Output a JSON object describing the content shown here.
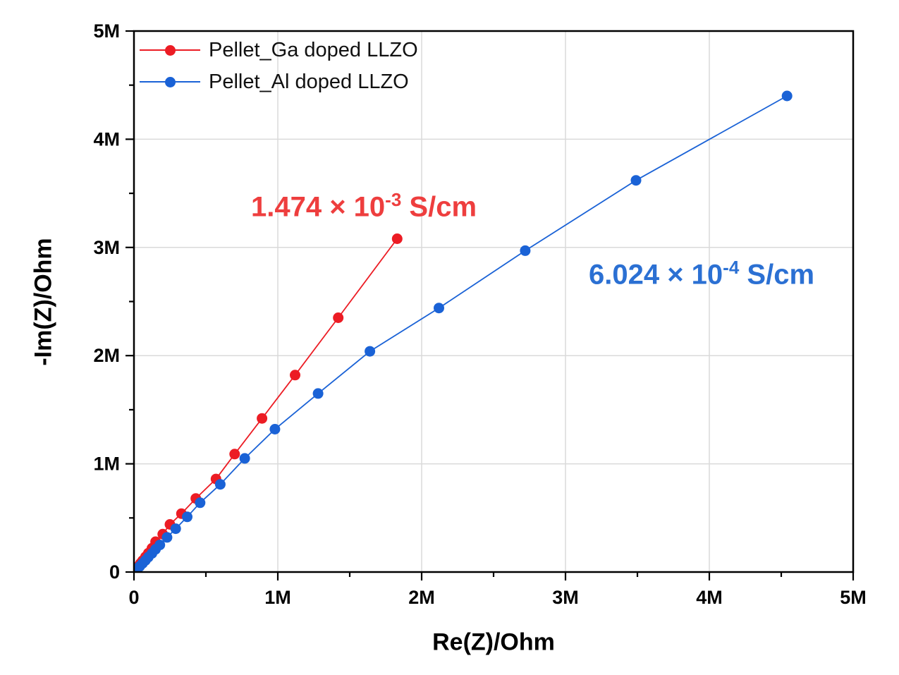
{
  "chart_data": {
    "type": "scatter",
    "subtype": "nyquist-impedance-plot",
    "title": "",
    "xlabel": "Re(Z)/Ohm",
    "ylabel": "-Im(Z)/Ohm",
    "x_axis": {
      "title": "Re(Z)/Ohm",
      "range_MOhm": [
        0,
        5
      ],
      "tick_values_MOhm": [
        0,
        1,
        2,
        3,
        4,
        5
      ],
      "tick_labels": [
        "0",
        "1M",
        "2M",
        "3M",
        "4M",
        "5M"
      ],
      "minor_tick_step_MOhm": 0.5
    },
    "y_axis": {
      "title": "-Im(Z)/Ohm",
      "range_MOhm": [
        0,
        5
      ],
      "tick_values_MOhm": [
        0,
        1,
        2,
        3,
        4,
        5
      ],
      "tick_labels": [
        "0",
        "1M",
        "2M",
        "3M",
        "4M",
        "5M"
      ],
      "minor_tick_step_MOhm": 0.5
    },
    "grid": {
      "major": true,
      "minor": false,
      "color": "#dadada"
    },
    "legend_position": "top-left-inside",
    "series": [
      {
        "name": "Pellet_Ga doped LLZO",
        "color": "#ec1c24",
        "marker": "circle",
        "marker_radius_px": 7.5,
        "points_MOhm": [
          [
            0.01,
            0.018
          ],
          [
            0.02,
            0.035
          ],
          [
            0.03,
            0.053
          ],
          [
            0.045,
            0.08
          ],
          [
            0.06,
            0.105
          ],
          [
            0.08,
            0.14
          ],
          [
            0.1,
            0.175
          ],
          [
            0.125,
            0.22
          ],
          [
            0.15,
            0.28
          ],
          [
            0.2,
            0.35
          ],
          [
            0.25,
            0.44
          ],
          [
            0.33,
            0.54
          ],
          [
            0.43,
            0.68
          ],
          [
            0.57,
            0.86
          ],
          [
            0.7,
            1.09
          ],
          [
            0.89,
            1.42
          ],
          [
            1.12,
            1.82
          ],
          [
            1.42,
            2.35
          ],
          [
            1.83,
            3.08
          ]
        ]
      },
      {
        "name": "Pellet_Al doped LLZO",
        "color": "#1a62d6",
        "marker": "circle",
        "marker_radius_px": 7.5,
        "points_MOhm": [
          [
            0.01,
            0.013
          ],
          [
            0.025,
            0.033
          ],
          [
            0.04,
            0.053
          ],
          [
            0.06,
            0.08
          ],
          [
            0.08,
            0.108
          ],
          [
            0.1,
            0.138
          ],
          [
            0.125,
            0.172
          ],
          [
            0.15,
            0.21
          ],
          [
            0.18,
            0.25
          ],
          [
            0.23,
            0.32
          ],
          [
            0.29,
            0.4
          ],
          [
            0.37,
            0.51
          ],
          [
            0.46,
            0.64
          ],
          [
            0.6,
            0.81
          ],
          [
            0.77,
            1.05
          ],
          [
            0.98,
            1.32
          ],
          [
            1.28,
            1.65
          ],
          [
            1.64,
            2.04
          ],
          [
            2.12,
            2.44
          ],
          [
            2.72,
            2.97
          ],
          [
            3.49,
            3.62
          ],
          [
            4.54,
            4.4
          ]
        ]
      }
    ],
    "annotations": [
      {
        "series": "Pellet_Ga doped LLZO",
        "text": "1.474 × 10^-3 S/cm",
        "prefix": "1.474 × 10",
        "exponent": "-3",
        "suffix": " S/cm",
        "color": "#ee3e3e"
      },
      {
        "series": "Pellet_Al doped LLZO",
        "text": "6.024 × 10^-4 S/cm",
        "prefix": "6.024 × 10",
        "exponent": "-4",
        "suffix": " S/cm",
        "color": "#2b70d3"
      }
    ],
    "frame_color": "#000000",
    "background_color": "#ffffff"
  },
  "legend": {
    "items": [
      {
        "label": "Pellet_Ga doped LLZO",
        "color": "#ec1c24"
      },
      {
        "label": "Pellet_Al doped LLZO",
        "color": "#1a62d6"
      }
    ]
  }
}
